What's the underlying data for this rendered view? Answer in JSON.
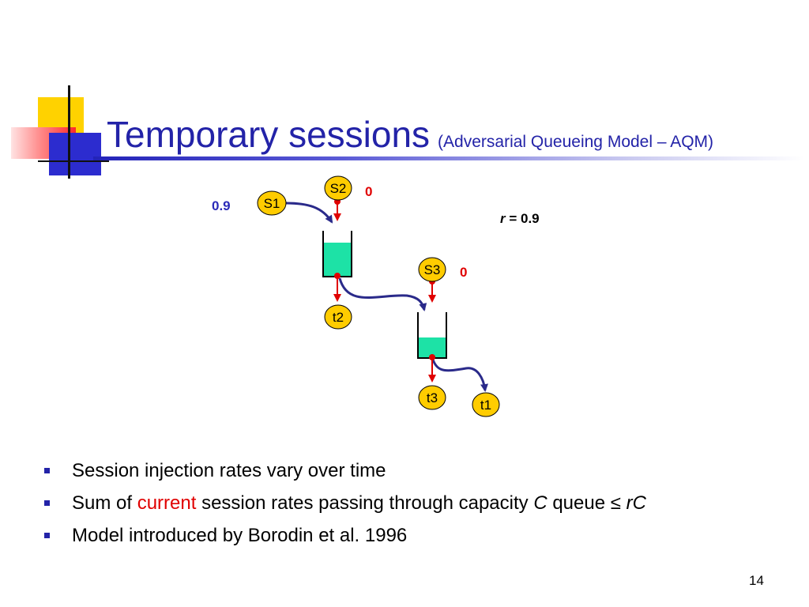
{
  "slide": {
    "title": "Temporary sessions",
    "subtitle": "(Adversarial Queueing Model – AQM)",
    "page_number": "14"
  },
  "diagram": {
    "nodes": {
      "s1": "S1",
      "s2": "S2",
      "s3": "S3",
      "t1": "t1",
      "t2": "t2",
      "t3": "t3"
    },
    "rates": {
      "s1": "0.9",
      "s2": "0",
      "s3": "0"
    },
    "r_label": {
      "symbol": "r",
      "text": " = 0.9"
    },
    "queue_fill_levels": {
      "queue1": 0.75,
      "queue2": 0.45
    },
    "colors": {
      "node_fill": "#ffcc00",
      "queue_fill": "#1de2a6",
      "flow_arrow": "#2a2a8a",
      "injection_arrow": "#e00000"
    }
  },
  "bullets": [
    {
      "text": "Session injection rates vary over time"
    },
    {
      "part1": "Sum of ",
      "highlight": "current",
      "part2": " session rates passing through capacity ",
      "var_c": "C",
      "part3": " queue ",
      "leq": "≤",
      "space": " ",
      "var_rc": "rC"
    },
    {
      "text": "Model introduced by Borodin et al. 1996"
    }
  ]
}
